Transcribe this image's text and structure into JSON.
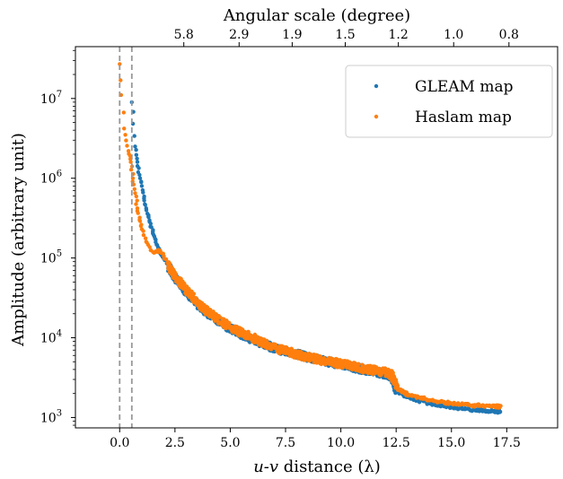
{
  "chart_data": {
    "type": "scatter",
    "top_axis_label": "Angular scale (degree)",
    "xlabel_italic": "u-v",
    "xlabel_rest": " distance (λ)",
    "ylabel": "Amplitude (arbitrary unit)",
    "xlim": [
      -2.0,
      19.8
    ],
    "ylim_log10": [
      2.87,
      7.65
    ],
    "y_scale": "log",
    "grid": false,
    "legend_placement": "top-right",
    "x_ticks": [
      0.0,
      2.5,
      5.0,
      7.5,
      10.0,
      12.5,
      15.0,
      17.5
    ],
    "x_tick_labels": [
      "0.0",
      "2.5",
      "5.0",
      "7.5",
      "10.0",
      "12.5",
      "15.0",
      "17.5"
    ],
    "y_ticks_exp": [
      3,
      4,
      5,
      6,
      7
    ],
    "y_tick_base": "10",
    "y_tick_exps": [
      "3",
      "4",
      "5",
      "6",
      "7"
    ],
    "top_ticks": [
      {
        "label": "5.8",
        "x": 2.9
      },
      {
        "label": "2.9",
        "x": 5.4
      },
      {
        "label": "1.9",
        "x": 7.8
      },
      {
        "label": "1.5",
        "x": 10.2
      },
      {
        "label": "1.2",
        "x": 12.6
      },
      {
        "label": "1.0",
        "x": 15.1
      },
      {
        "label": "0.8",
        "x": 17.6
      }
    ],
    "vlines": [
      0.0,
      0.55
    ],
    "series": [
      {
        "name": "GLEAM map",
        "color": "#1f77b4",
        "points": [
          [
            0.55,
            9000000
          ],
          [
            0.7,
            2500000
          ],
          [
            0.8,
            1600000
          ],
          [
            0.9,
            1100000
          ],
          [
            1.0,
            800000
          ],
          [
            1.1,
            560000
          ],
          [
            1.2,
            420000
          ],
          [
            1.3,
            330000
          ],
          [
            1.4,
            270000
          ],
          [
            1.5,
            215000
          ],
          [
            1.6,
            175000
          ],
          [
            1.7,
            145000
          ],
          [
            1.8,
            125000
          ],
          [
            2.0,
            98000
          ],
          [
            2.2,
            78000
          ],
          [
            2.5,
            58000
          ],
          [
            3.0,
            38000
          ],
          [
            3.5,
            27000
          ],
          [
            4.0,
            20000
          ],
          [
            5.0,
            13000
          ],
          [
            6.0,
            9500
          ],
          [
            7.0,
            7400
          ],
          [
            8.0,
            6200
          ],
          [
            9.0,
            5300
          ],
          [
            10.0,
            4600
          ],
          [
            11.0,
            4000
          ],
          [
            12.0,
            3500
          ],
          [
            12.3,
            3300
          ],
          [
            12.5,
            2200
          ],
          [
            13.0,
            1800
          ],
          [
            14.0,
            1500
          ],
          [
            15.0,
            1350
          ],
          [
            16.0,
            1250
          ],
          [
            17.0,
            1200
          ],
          [
            17.2,
            1180
          ]
        ]
      },
      {
        "name": "Haslam map",
        "color": "#ff7f0e",
        "points": [
          [
            0.0,
            27000000
          ],
          [
            0.2,
            4200000
          ],
          [
            0.4,
            2200000
          ],
          [
            0.5,
            1600000
          ],
          [
            0.6,
            1000000
          ],
          [
            0.7,
            650000
          ],
          [
            0.8,
            420000
          ],
          [
            0.9,
            300000
          ],
          [
            1.0,
            230000
          ],
          [
            1.2,
            160000
          ],
          [
            1.4,
            125000
          ],
          [
            1.6,
            118000
          ],
          [
            1.8,
            125000
          ],
          [
            2.0,
            105000
          ],
          [
            2.2,
            82000
          ],
          [
            2.5,
            60000
          ],
          [
            3.0,
            40000
          ],
          [
            3.5,
            28000
          ],
          [
            4.0,
            21000
          ],
          [
            5.0,
            13500
          ],
          [
            6.0,
            10000
          ],
          [
            7.0,
            7500
          ],
          [
            8.0,
            6200
          ],
          [
            9.0,
            5300
          ],
          [
            10.0,
            4700
          ],
          [
            11.0,
            4100
          ],
          [
            12.0,
            3700
          ],
          [
            12.3,
            3400
          ],
          [
            12.6,
            2300
          ],
          [
            13.0,
            1950
          ],
          [
            14.0,
            1650
          ],
          [
            15.0,
            1500
          ],
          [
            16.0,
            1420
          ],
          [
            17.0,
            1380
          ],
          [
            17.2,
            1370
          ]
        ]
      }
    ]
  }
}
